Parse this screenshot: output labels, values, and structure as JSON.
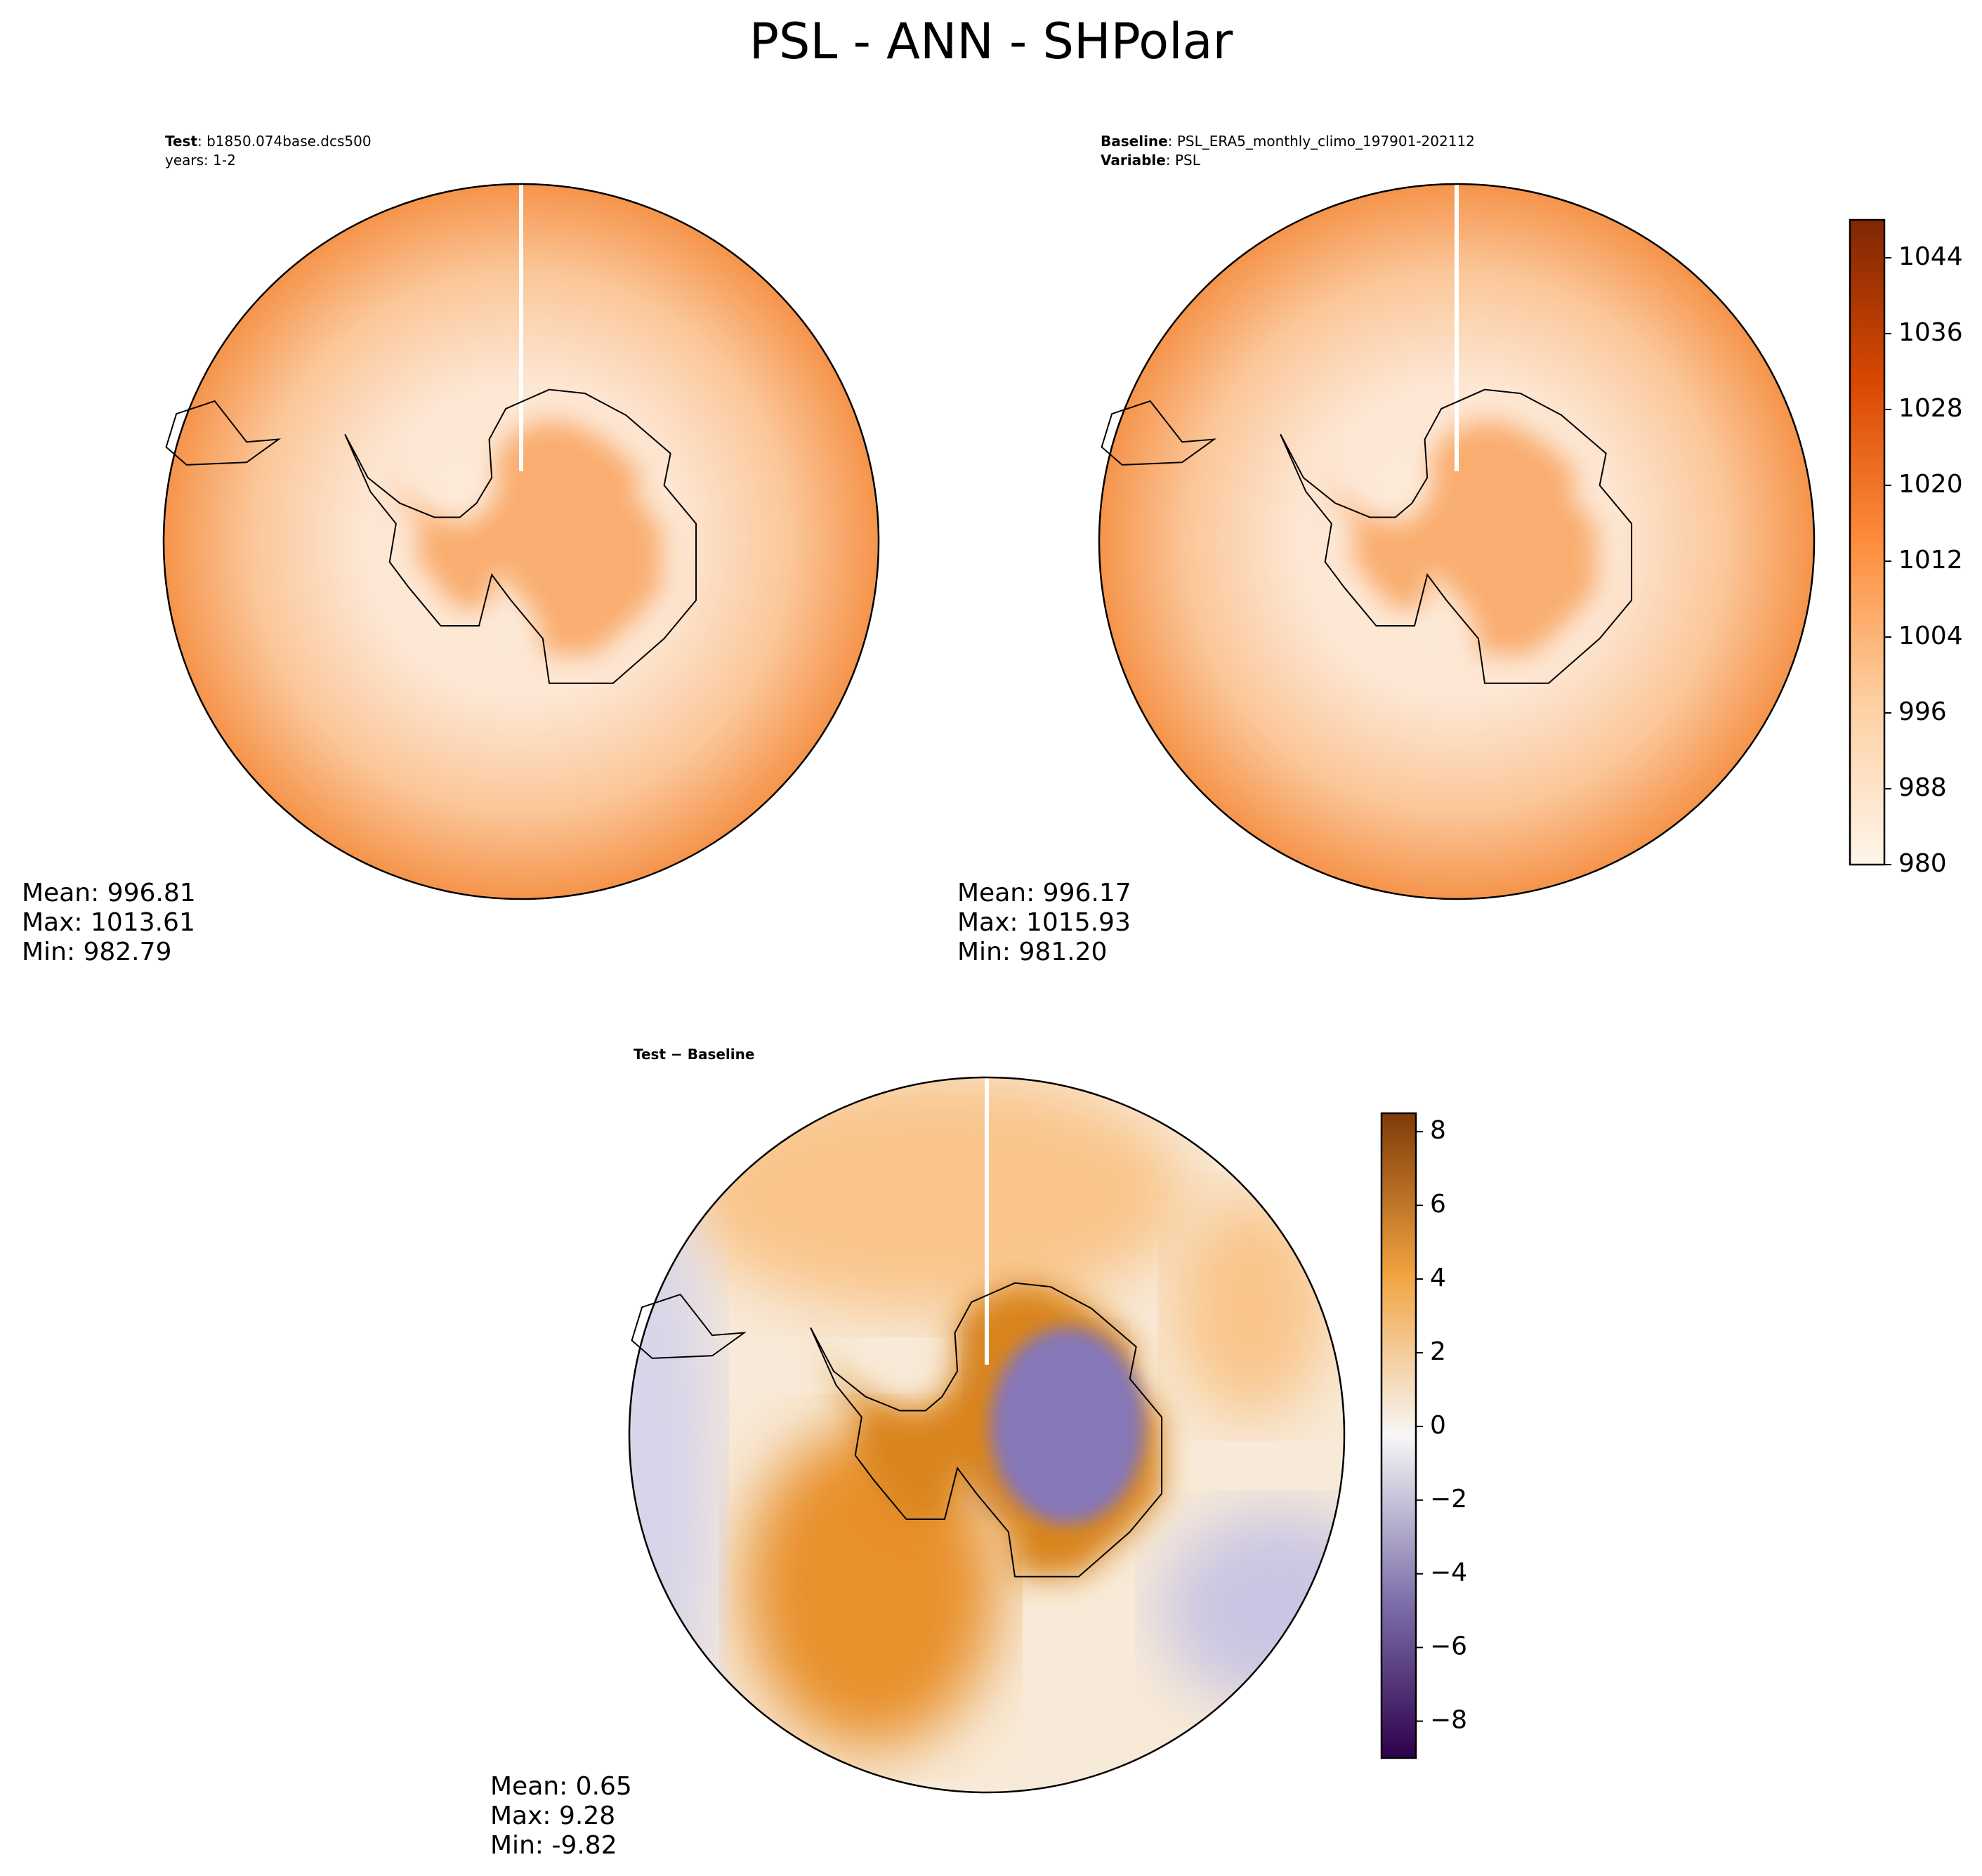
{
  "title": "PSL - ANN - SHPolar",
  "panels": [
    {
      "header": [
        {
          "key": "Test",
          "text": ": b1850.074base.dcs500"
        },
        {
          "text": "years: 1-2"
        }
      ],
      "stats": [
        "Mean: 996.81",
        "Max: 1013.61",
        "Min: 982.79"
      ]
    },
    {
      "header": [
        {
          "key": "Baseline",
          "text": ": PSL_ERA5_monthly_climo_197901-202112"
        },
        {
          "key": "Variable",
          "text": ": PSL"
        }
      ],
      "stats": [
        "Mean: 996.17",
        "Max: 1015.93",
        "Min: 981.20"
      ]
    },
    {
      "header": [
        {
          "key": "Test − Baseline"
        }
      ],
      "stats": [
        "Mean:  0.65",
        "Max:  9.28",
        "Min: -9.82"
      ]
    }
  ],
  "colorbars": [
    {
      "ylim": [
        980,
        1048
      ],
      "yticks": [
        980,
        988,
        996,
        1004,
        1012,
        1020,
        1028,
        1036,
        1044
      ]
    },
    {
      "ylim": [
        -9,
        8.5
      ],
      "yticks": [
        {
          "value": -8,
          "label": "−8"
        },
        {
          "value": -6,
          "label": "−6"
        },
        {
          "value": -4,
          "label": "−4"
        },
        {
          "value": -2,
          "label": "−2"
        },
        0,
        2,
        4,
        6,
        8
      ]
    }
  ]
}
